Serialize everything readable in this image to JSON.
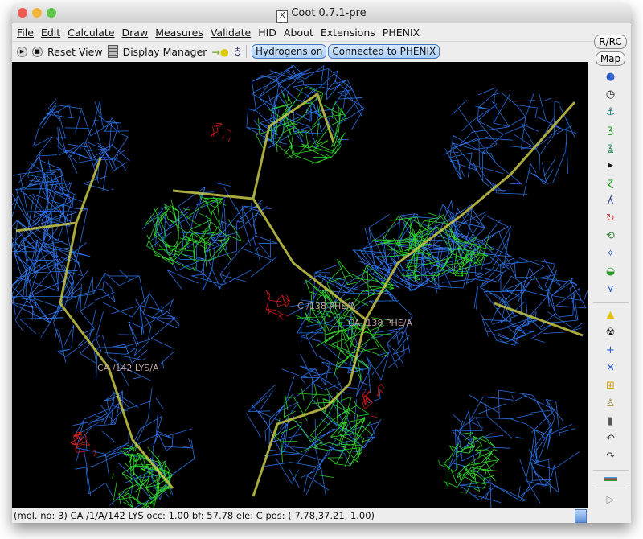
{
  "window": {
    "title": "Coot 0.7.1-pre"
  },
  "menu": [
    {
      "label": "File",
      "underline": true
    },
    {
      "label": "Edit",
      "underline": true
    },
    {
      "label": "Calculate",
      "underline": true
    },
    {
      "label": "Draw",
      "underline": true
    },
    {
      "label": "Measures",
      "underline": true
    },
    {
      "label": "Validate",
      "underline": true
    },
    {
      "label": "HID",
      "underline": false
    },
    {
      "label": "About",
      "underline": false
    },
    {
      "label": "Extensions",
      "underline": false
    },
    {
      "label": "PHENIX",
      "underline": false
    }
  ],
  "toolbar": {
    "reset_view": "Reset View",
    "display_manager": "Display Manager",
    "hydrogens": "Hydrogens on",
    "phenix": "Connected to PHENIX"
  },
  "side": {
    "rrc": "R/RC",
    "map": "Map",
    "icons": [
      "globe-icon",
      "clock-icon",
      "anchor-icon",
      "real-space-refine-icon",
      "regularize-icon",
      "play-icon",
      "rigid-body-fit-icon",
      "auto-fit-rotamer-icon",
      "rotamer-icon",
      "torsion-icon",
      "pep-flip-icon",
      "side-chain-icon",
      "backrub-icon",
      "sep",
      "place-atom-icon",
      "radioactive-icon",
      "add-residue-icon",
      "add-terminal-icon",
      "add-alt-conf-icon",
      "clear-pending-icon",
      "delete-icon",
      "undo-icon",
      "redo-icon",
      "sep",
      "flag-icon",
      "sep",
      "more-icon"
    ]
  },
  "canvas": {
    "labels": [
      "C /138 PHE/A",
      "CA /138 PHE/A",
      "CA /142 LYS/A"
    ],
    "mesh_colors": {
      "map1": "#2a6fe0",
      "map2": "#2fd02a",
      "diff": "#d01818",
      "backbone": "#c8c84a"
    }
  },
  "status": {
    "text": "(mol. no: 3)  CA /1/A/142 LYS occ:  1.00 bf: 57.78 ele:  C pos: ( 7.78,37.21, 1.00)"
  }
}
